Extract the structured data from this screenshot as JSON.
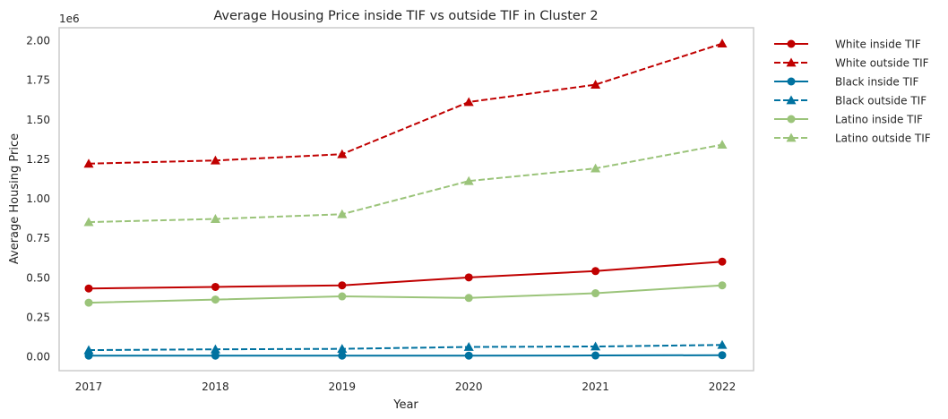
{
  "chart_data": {
    "type": "line",
    "title": "Average Housing Price inside TIF vs outside TIF in Cluster 2",
    "xlabel": "Year",
    "ylabel": "Average Housing Price",
    "y_offset_label": "1e6",
    "categories": [
      "2017",
      "2018",
      "2019",
      "2020",
      "2021",
      "2022"
    ],
    "y_ticks": [
      "0.00",
      "0.25",
      "0.50",
      "0.75",
      "1.00",
      "1.25",
      "1.50",
      "1.75",
      "2.00"
    ],
    "ylim": [
      -0.09,
      2.08
    ],
    "grid": false,
    "legend_position": "outside-right",
    "series": [
      {
        "name": "White inside TIF",
        "color": "#c00000",
        "style": "solid",
        "marker": "circle",
        "values": [
          0.43,
          0.44,
          0.45,
          0.5,
          0.54,
          0.6
        ]
      },
      {
        "name": "White outside TIF",
        "color": "#c00000",
        "style": "dashed",
        "marker": "triangle",
        "values": [
          1.22,
          1.24,
          1.28,
          1.61,
          1.72,
          1.98
        ]
      },
      {
        "name": "Black inside TIF",
        "color": "#0072a0",
        "style": "solid",
        "marker": "circle",
        "values": [
          0.005,
          0.005,
          0.005,
          0.005,
          0.006,
          0.008
        ]
      },
      {
        "name": "Black outside TIF",
        "color": "#0072a0",
        "style": "dashed",
        "marker": "triangle",
        "values": [
          0.04,
          0.045,
          0.048,
          0.06,
          0.063,
          0.073
        ]
      },
      {
        "name": "Latino inside TIF",
        "color": "#9bc47a",
        "style": "solid",
        "marker": "circle",
        "values": [
          0.34,
          0.36,
          0.38,
          0.37,
          0.4,
          0.45
        ]
      },
      {
        "name": "Latino outside TIF",
        "color": "#9bc47a",
        "style": "dashed",
        "marker": "triangle",
        "values": [
          0.85,
          0.87,
          0.9,
          1.11,
          1.19,
          1.34
        ]
      }
    ]
  }
}
